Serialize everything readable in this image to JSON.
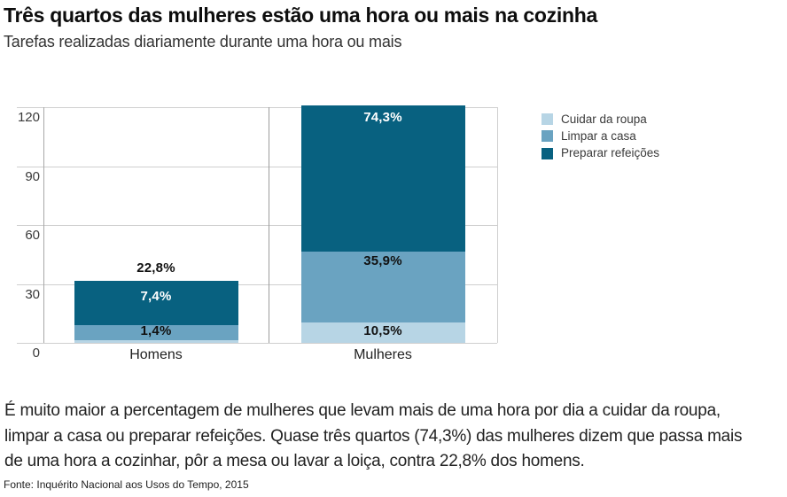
{
  "chart_data": {
    "type": "bar",
    "stacked": true,
    "title": "Três quartos das mulheres estão uma hora ou mais na cozinha",
    "subtitle": "Tarefas realizadas diariamente durante uma hora ou mais",
    "categories": [
      "Homens",
      "Mulheres"
    ],
    "series": [
      {
        "name": "Cuidar da roupa",
        "color": "#b7d5e5",
        "values": [
          1.4,
          10.5
        ],
        "labels": [
          "1,4%",
          "10,5%"
        ]
      },
      {
        "name": "Limpar a casa",
        "color": "#6aa3c1",
        "values": [
          7.4,
          35.9
        ],
        "labels": [
          "7,4%",
          "35,9%"
        ]
      },
      {
        "name": "Preparar refeições",
        "color": "#086180",
        "values": [
          22.8,
          74.3
        ],
        "labels": [
          "22,8%",
          "74,3%"
        ]
      }
    ],
    "totals": [
      31.6,
      120.7
    ],
    "y_ticks": [
      0,
      30,
      60,
      90,
      120
    ],
    "ylim": [
      0,
      120
    ],
    "xlabel": "",
    "ylabel": "",
    "grid": true,
    "legend_position": "right",
    "grid_color": "#cfcfcf",
    "axis_line_color": "#a8a8a8",
    "panel_divider_color": "#9c9c9c",
    "label_text_dark": "#111111",
    "label_text_light": "#ffffff"
  },
  "annotation": {
    "body": "É muito maior a percentagem de mulheres que levam mais de uma hora por dia a  cuidar da roupa, limpar a casa ou preparar refeições. Quase três quartos (74,3%) das mulheres dizem que passa mais de uma hora a cozinhar, pôr a mesa ou lavar a loiça, contra 22,8% dos homens.",
    "source": "Fonte: Inquérito Nacional aos Usos do Tempo, 2015"
  }
}
